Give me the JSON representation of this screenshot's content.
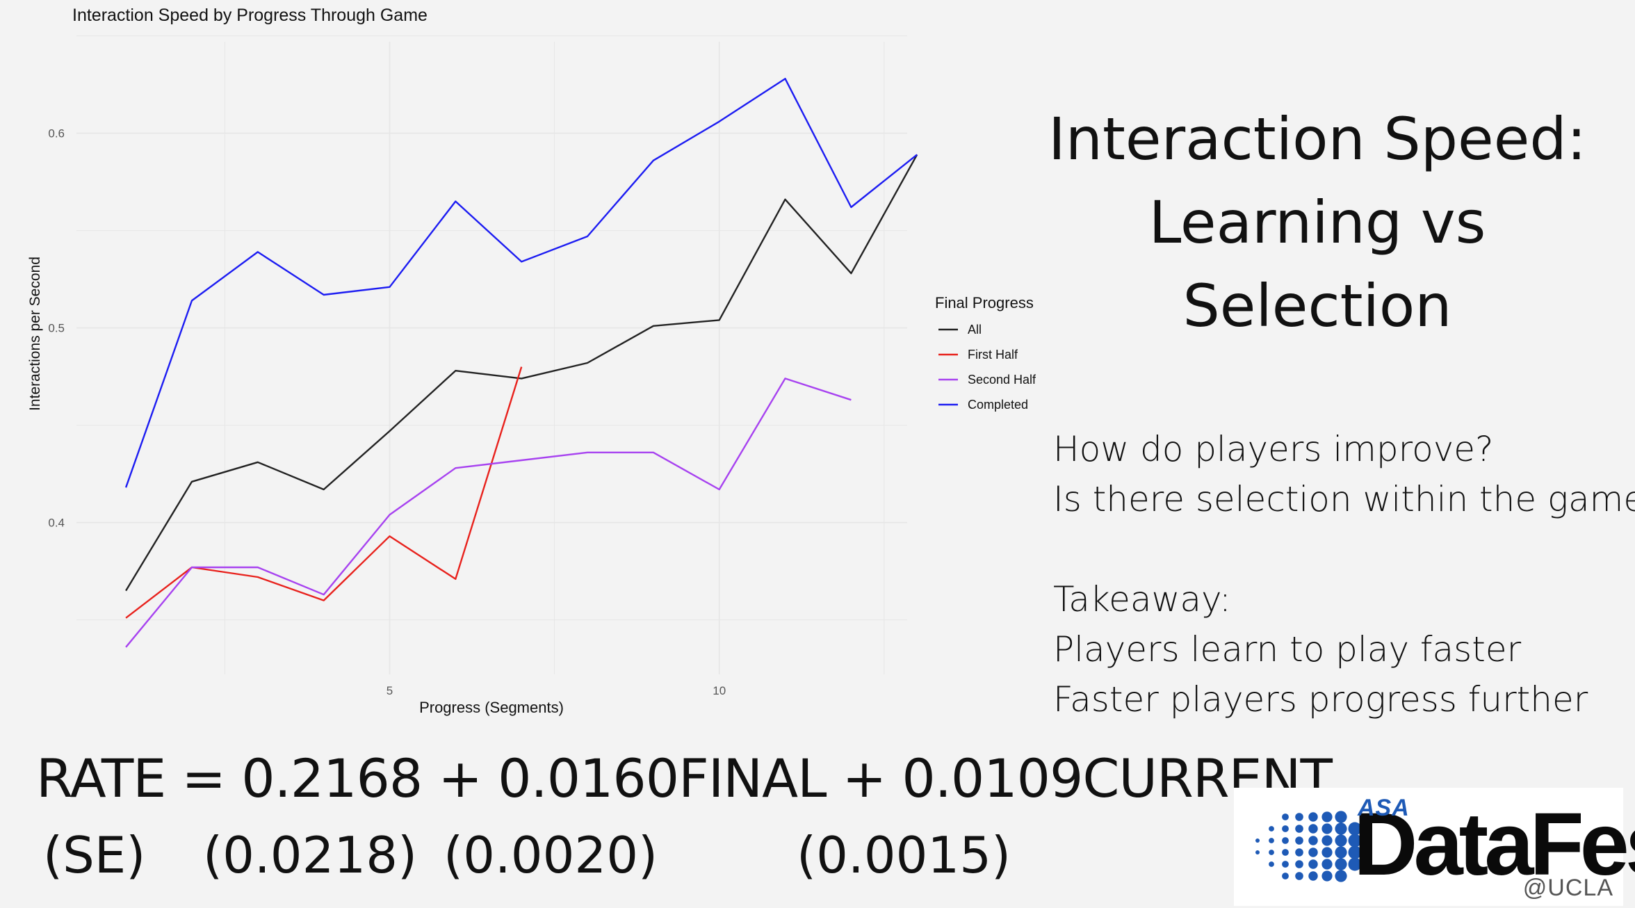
{
  "slide": {
    "title_lines": [
      "Interaction Speed:",
      "Learning vs",
      "Selection"
    ],
    "questions": [
      "How do players improve?",
      "Is there selection within the game?"
    ],
    "takeaway_heading": "Takeaway:",
    "takeaways": [
      "Players learn to play faster",
      "Faster players progress further"
    ],
    "equation": "RATE = 0.2168 + 0.0160FINAL + 0.0109CURRENT",
    "se": {
      "label": "(SE)",
      "intercept": "(0.0218)",
      "final": "(0.0020)",
      "current": "(0.0015)"
    }
  },
  "logo": {
    "asa": "ASA",
    "word": "DataFest",
    "ucla": "@UCLA",
    "dot_color": "#1e5ab6"
  },
  "chart_data": {
    "type": "line",
    "title": "Interaction Speed by Progress Through Game",
    "xlabel": "Progress (Segments)",
    "ylabel": "Interactions per Second",
    "xlim": [
      0.25,
      12.85
    ],
    "ylim": [
      0.322,
      0.647
    ],
    "x_ticks": [
      5,
      10
    ],
    "y_ticks": [
      0.4,
      0.5,
      0.6
    ],
    "grid": true,
    "legend": {
      "title": "Final Progress",
      "position": "right"
    },
    "series": [
      {
        "name": "All",
        "color": "#222222",
        "x": [
          1,
          2,
          3,
          4,
          5,
          6,
          7,
          8,
          9,
          10,
          11,
          12,
          13
        ],
        "values": [
          0.365,
          0.421,
          0.431,
          0.417,
          0.447,
          0.478,
          0.474,
          0.482,
          0.501,
          0.504,
          0.566,
          0.528,
          0.589
        ]
      },
      {
        "name": "First Half",
        "color": "#e8211c",
        "x": [
          1,
          2,
          3,
          4,
          5,
          6,
          7
        ],
        "values": [
          0.351,
          0.377,
          0.372,
          0.36,
          0.393,
          0.371,
          0.48
        ]
      },
      {
        "name": "Second Half",
        "color": "#a742f0",
        "x": [
          1,
          2,
          3,
          4,
          5,
          6,
          7,
          8,
          9,
          10,
          11,
          12
        ],
        "values": [
          0.336,
          0.377,
          0.377,
          0.363,
          0.404,
          0.428,
          0.432,
          0.436,
          0.436,
          0.417,
          0.474,
          0.463
        ]
      },
      {
        "name": "Completed",
        "color": "#1c1cf2",
        "x": [
          1,
          2,
          3,
          4,
          5,
          6,
          7,
          8,
          9,
          10,
          11,
          12,
          13
        ],
        "values": [
          0.418,
          0.514,
          0.539,
          0.517,
          0.521,
          0.565,
          0.534,
          0.547,
          0.586,
          0.606,
          0.628,
          0.562,
          0.589
        ]
      }
    ]
  }
}
